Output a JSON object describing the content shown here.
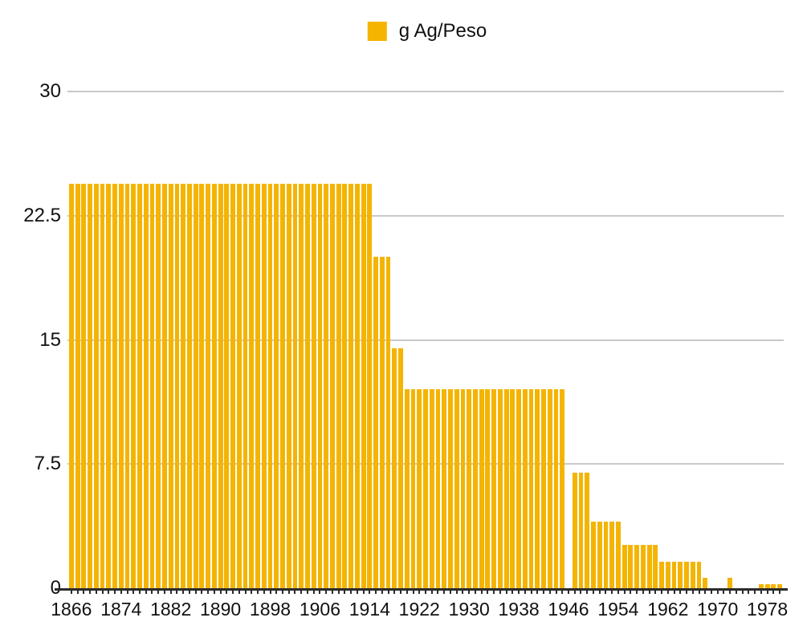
{
  "legend": {
    "label": "g Ag/Peso"
  },
  "colors": {
    "bar": "#F4B400",
    "gridline": "#C9C9C9",
    "axis_line": "#2B2B2B",
    "text": "#111111",
    "background": "#FFFFFF"
  },
  "chart_data": {
    "type": "bar",
    "title": "",
    "xlabel": "",
    "ylabel": "",
    "legend_label": "g Ag/Peso",
    "legend_position": "top",
    "grid": true,
    "ylim": [
      0,
      30
    ],
    "y_ticks": [
      0,
      7.5,
      15,
      22.5,
      30
    ],
    "y_tick_labels": [
      "0",
      "7.5",
      "15",
      "22.5",
      "30"
    ],
    "x_tick_labels": [
      "1866",
      "1874",
      "1882",
      "1890",
      "1898",
      "1906",
      "1914",
      "1922",
      "1930",
      "1938",
      "1946",
      "1954",
      "1962",
      "1970",
      "1978"
    ],
    "x_tick_years": [
      1866,
      1874,
      1882,
      1890,
      1898,
      1906,
      1914,
      1922,
      1930,
      1938,
      1946,
      1954,
      1962,
      1970,
      1978
    ],
    "x": [
      1866,
      1867,
      1868,
      1869,
      1870,
      1871,
      1872,
      1873,
      1874,
      1875,
      1876,
      1877,
      1878,
      1879,
      1880,
      1881,
      1882,
      1883,
      1884,
      1885,
      1886,
      1887,
      1888,
      1889,
      1890,
      1891,
      1892,
      1893,
      1894,
      1895,
      1896,
      1897,
      1898,
      1899,
      1900,
      1901,
      1902,
      1903,
      1904,
      1905,
      1906,
      1907,
      1908,
      1909,
      1910,
      1911,
      1912,
      1913,
      1914,
      1915,
      1916,
      1917,
      1918,
      1919,
      1920,
      1921,
      1922,
      1923,
      1924,
      1925,
      1926,
      1927,
      1928,
      1929,
      1930,
      1931,
      1932,
      1933,
      1934,
      1935,
      1936,
      1937,
      1938,
      1939,
      1940,
      1941,
      1942,
      1943,
      1944,
      1945,
      1946,
      1947,
      1948,
      1949,
      1950,
      1951,
      1952,
      1953,
      1954,
      1955,
      1956,
      1957,
      1958,
      1959,
      1960,
      1961,
      1962,
      1963,
      1964,
      1965,
      1966,
      1967,
      1968,
      1969,
      1970,
      1971,
      1972,
      1973,
      1974,
      1975,
      1976,
      1977,
      1978,
      1979,
      1980
    ],
    "values": [
      24.44,
      24.44,
      24.44,
      24.44,
      24.44,
      24.44,
      24.44,
      24.44,
      24.44,
      24.44,
      24.44,
      24.44,
      24.44,
      24.44,
      24.44,
      24.44,
      24.44,
      24.44,
      24.44,
      24.44,
      24.44,
      24.44,
      24.44,
      24.44,
      24.44,
      24.44,
      24.44,
      24.44,
      24.44,
      24.44,
      24.44,
      24.44,
      24.44,
      24.44,
      24.44,
      24.44,
      24.44,
      24.44,
      24.44,
      24.44,
      24.44,
      24.44,
      24.44,
      24.44,
      24.44,
      24.44,
      24.44,
      24.44,
      24.44,
      20,
      20,
      20,
      14.5,
      14.5,
      12,
      12,
      12,
      12,
      12,
      12,
      12,
      12,
      12,
      12,
      12,
      12,
      12,
      12,
      12,
      12,
      12,
      12,
      12,
      12,
      12,
      12,
      12,
      12,
      12,
      12,
      0,
      7,
      7,
      7,
      4,
      4,
      4,
      4,
      4,
      2.6,
      2.6,
      2.6,
      2.6,
      2.6,
      2.6,
      1.6,
      1.6,
      1.6,
      1.6,
      1.6,
      1.6,
      1.6,
      0.65,
      0,
      0,
      0,
      0.65,
      0,
      0,
      0,
      0,
      0.25,
      0.25,
      0.25,
      0.25
    ]
  }
}
